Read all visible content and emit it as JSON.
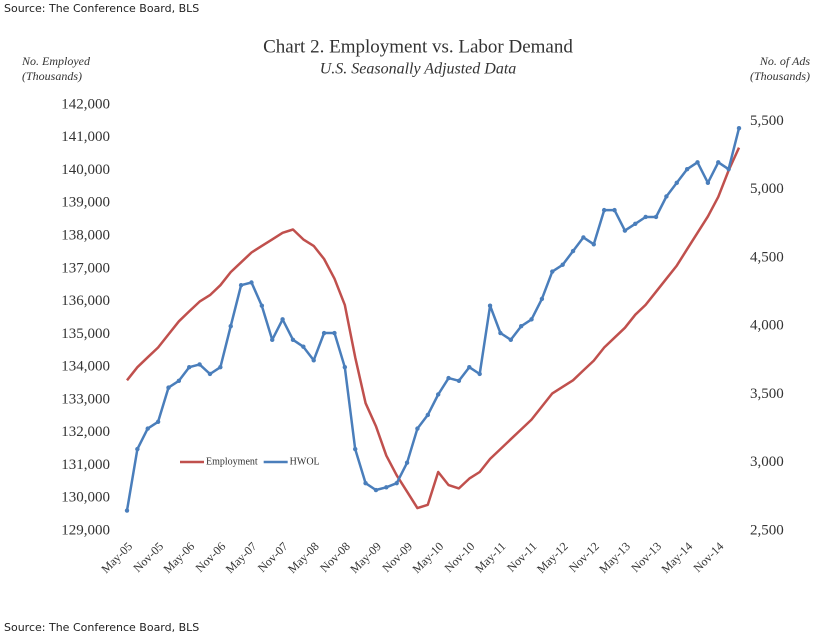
{
  "source": "Source: The Conference Board, BLS",
  "chart_data": {
    "type": "line",
    "title": "Chart 2. Employment vs. Labor Demand",
    "subtitle": "U.S. Seasonally Adjusted Data",
    "y_label": [
      "No. Employed",
      "(Thousands)"
    ],
    "y2_label": [
      "No. of Ads",
      "(Thousands)"
    ],
    "categories": [
      "May-05",
      null,
      null,
      "Nov-05",
      null,
      null,
      "May-06",
      null,
      null,
      "Nov-06",
      null,
      null,
      "May-07",
      null,
      null,
      "Nov-07",
      null,
      null,
      "May-08",
      null,
      null,
      "Nov-08",
      null,
      null,
      "May-09",
      null,
      null,
      "Nov-09",
      null,
      null,
      "May-10",
      null,
      null,
      "Nov-10",
      null,
      null,
      "May-11",
      null,
      null,
      "Nov-11",
      null,
      null,
      "May-12",
      null,
      null,
      "Nov-12",
      null,
      null,
      "May-13",
      null,
      null,
      "Nov-13",
      null,
      null,
      "May-14",
      null,
      null,
      "Nov-14",
      null,
      null
    ],
    "series": [
      {
        "name": "Employment",
        "color": "#c0504d",
        "axis": "y",
        "values": [
          133600,
          134000,
          134300,
          134600,
          135000,
          135400,
          135700,
          136000,
          136200,
          136500,
          136900,
          137200,
          137500,
          137700,
          137900,
          138100,
          138200,
          137900,
          137700,
          137300,
          136700,
          135900,
          134300,
          132900,
          132200,
          131300,
          130700,
          130200,
          129700,
          129800,
          130800,
          130400,
          130300,
          130600,
          130800,
          131200,
          131500,
          131800,
          132100,
          132400,
          132800,
          133200,
          133400,
          133600,
          133900,
          134200,
          134600,
          134900,
          135200,
          135600,
          135900,
          136300,
          136700,
          137100,
          137600,
          138100,
          138600,
          139200,
          140000,
          140700
        ]
      },
      {
        "name": "HWOL",
        "color": "#4a7ebb",
        "axis": "y2",
        "values": [
          2650,
          3100,
          3250,
          3300,
          3550,
          3600,
          3700,
          3720,
          3650,
          3700,
          4000,
          4300,
          4320,
          4150,
          3900,
          4050,
          3900,
          3850,
          3750,
          3950,
          3950,
          3700,
          3100,
          2850,
          2800,
          2820,
          2850,
          3000,
          3250,
          3350,
          3500,
          3620,
          3600,
          3700,
          3650,
          4150,
          3950,
          3900,
          4000,
          4050,
          4200,
          4400,
          4450,
          4550,
          4650,
          4600,
          4850,
          4850,
          4700,
          4750,
          4800,
          4800,
          4950,
          5050,
          5150,
          5200,
          5050,
          5200,
          5150,
          5450
        ]
      }
    ],
    "ylim": [
      129000,
      142000
    ],
    "yticks": [
      {
        "value": 129000,
        "label": "129,000"
      },
      {
        "value": 130000,
        "label": "130,000"
      },
      {
        "value": 131000,
        "label": "131,000"
      },
      {
        "value": 132000,
        "label": "132,000"
      },
      {
        "value": 133000,
        "label": "133,000"
      },
      {
        "value": 134000,
        "label": "134,000"
      },
      {
        "value": 135000,
        "label": "135,000"
      },
      {
        "value": 136000,
        "label": "136,000"
      },
      {
        "value": 137000,
        "label": "137,000"
      },
      {
        "value": 138000,
        "label": "138,000"
      },
      {
        "value": 139000,
        "label": "139,000"
      },
      {
        "value": 140000,
        "label": "140,000"
      },
      {
        "value": 141000,
        "label": "141,000"
      },
      {
        "value": 142000,
        "label": "142,000"
      }
    ],
    "y2lim": [
      2500,
      5620
    ],
    "y2ticks": [
      {
        "value": 2500,
        "label": "2,500"
      },
      {
        "value": 3000,
        "label": "3,000"
      },
      {
        "value": 3500,
        "label": "3,500"
      },
      {
        "value": 4000,
        "label": "4,000"
      },
      {
        "value": 4500,
        "label": "4,500"
      },
      {
        "value": 5000,
        "label": "5,000"
      },
      {
        "value": 5500,
        "label": "5,500"
      }
    ],
    "grid": false,
    "legend": "lower-left"
  }
}
